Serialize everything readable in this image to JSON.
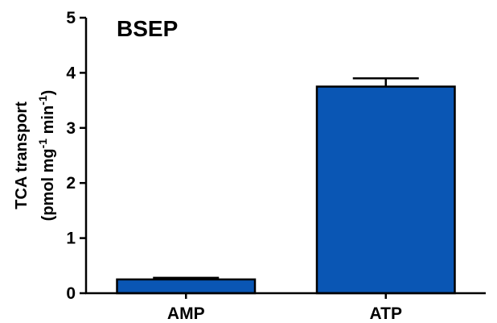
{
  "chart_data": {
    "type": "bar",
    "title": "BSEP",
    "categories": [
      "AMP",
      "ATP"
    ],
    "values": [
      0.25,
      3.75
    ],
    "errors": [
      0.03,
      0.15
    ],
    "ylabel_line1": "TCA transport",
    "ylabel_line2_pre": "(pmol mg",
    "ylabel_line2_sup1": "-1",
    "ylabel_line2_mid": " min",
    "ylabel_line2_sup2": "-1",
    "ylabel_line2_post": ")",
    "xlabel": "",
    "ylim": [
      0,
      5
    ],
    "yticks": [
      "0",
      "1",
      "2",
      "3",
      "4",
      "5"
    ],
    "bar_color": "#0a56b4",
    "grid": false
  }
}
